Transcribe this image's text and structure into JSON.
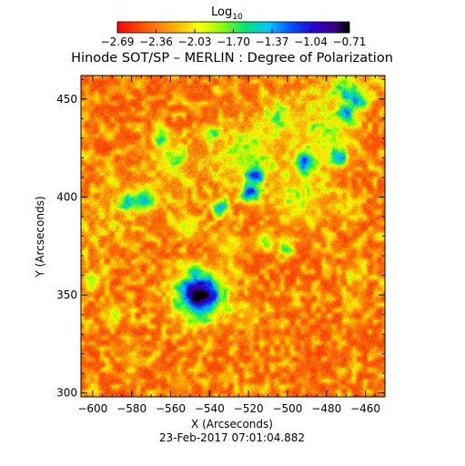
{
  "chart_data": {
    "type": "heatmap",
    "title": "Hinode SOT/SP – MERLIN : Degree of Polarization",
    "xlabel": "X (Arcseconds)",
    "ylabel": "Y (Arcseconds)",
    "timestamp": "23-Feb-2017 07:01:04.882",
    "xlim": [
      -606,
      -450
    ],
    "ylim": [
      298,
      462
    ],
    "x_ticks": [
      -600,
      -580,
      -560,
      -540,
      -520,
      -500,
      -480,
      -460
    ],
    "x_tick_labels": [
      "−600",
      "−580",
      "−560",
      "−540",
      "−520",
      "−500",
      "−480",
      "−460"
    ],
    "y_ticks": [
      300,
      350,
      400,
      450
    ],
    "y_tick_labels": [
      "300",
      "350",
      "400",
      "450"
    ],
    "colorbar": {
      "label": "Log",
      "label_subscript": "10",
      "range": [
        -2.69,
        -0.71
      ],
      "tick_values": [
        -2.69,
        -2.36,
        -2.03,
        -1.7,
        -1.37,
        -1.04,
        -0.71
      ],
      "tick_labels": [
        "−2.69",
        "−2.36",
        "−2.03",
        "−1.70",
        "−1.37",
        "−1.04",
        "−0.71"
      ],
      "colormap": "rainbow (red at low values to violet/black at high values)"
    },
    "features": [
      {
        "kind": "sunspot",
        "center": [
          -545,
          350
        ],
        "radius": 9,
        "peak_value": -0.9
      },
      {
        "kind": "strong polarization patches",
        "around": [
          [
            -520,
            402
          ],
          [
            -517,
            410
          ],
          [
            -492,
            418
          ],
          [
            -475,
            420
          ],
          [
            -572,
            398
          ],
          [
            -534,
            395
          ]
        ]
      },
      {
        "kind": "weak background",
        "typical_value": -2.6
      }
    ]
  }
}
